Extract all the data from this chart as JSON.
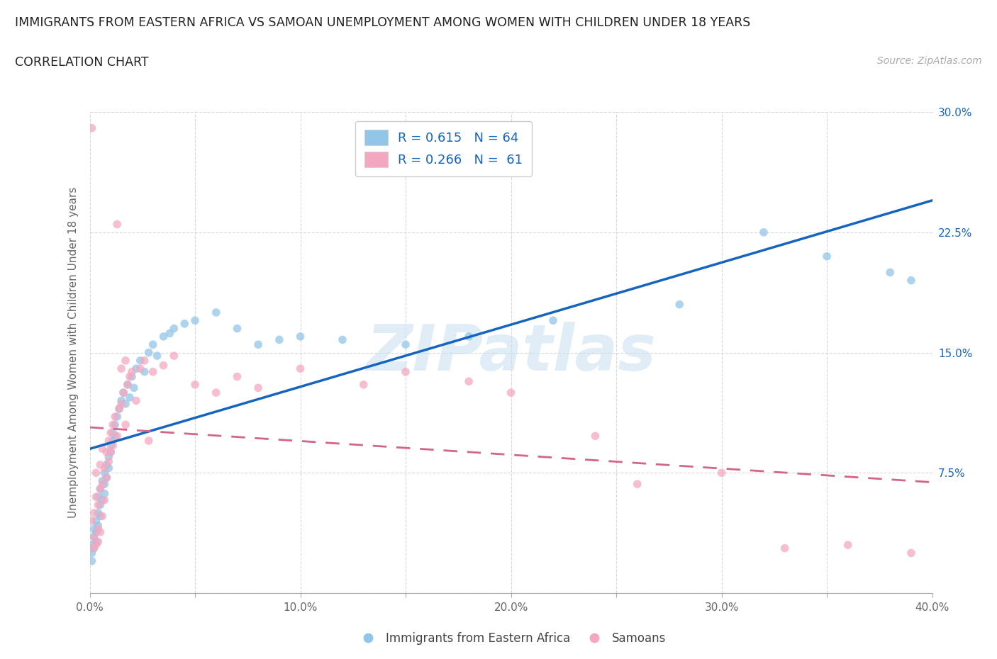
{
  "title": "IMMIGRANTS FROM EASTERN AFRICA VS SAMOAN UNEMPLOYMENT AMONG WOMEN WITH CHILDREN UNDER 18 YEARS",
  "subtitle": "CORRELATION CHART",
  "source": "Source: ZipAtlas.com",
  "ylabel": "Unemployment Among Women with Children Under 18 years",
  "xmin": 0.0,
  "xmax": 0.4,
  "ymin": 0.0,
  "ymax": 0.3,
  "x_ticks": [
    0.0,
    0.05,
    0.1,
    0.15,
    0.2,
    0.25,
    0.3,
    0.35,
    0.4
  ],
  "x_tick_labels": [
    "0.0%",
    "",
    "10.0%",
    "",
    "20.0%",
    "",
    "30.0%",
    "",
    "40.0%"
  ],
  "y_ticks": [
    0.0,
    0.075,
    0.15,
    0.225,
    0.3
  ],
  "y_tick_right_labels": [
    "",
    "7.5%",
    "15.0%",
    "22.5%",
    "30.0%"
  ],
  "blue_color": "#92c5e8",
  "pink_color": "#f4a8c0",
  "blue_line_color": "#1565c0",
  "pink_line_color": "#d4648a",
  "R_blue": 0.615,
  "N_blue": 64,
  "R_pink": 0.266,
  "N_pink": 61,
  "legend_label_blue": "Immigrants from Eastern Africa",
  "legend_label_pink": "Samoans",
  "watermark": "ZIPatlas",
  "grid_color": "#d8d8d8",
  "title_color": "#222222",
  "source_color": "#aaaaaa",
  "tick_color": "#666666",
  "right_tick_color": "#1565c0",
  "blue_scatter": [
    [
      0.001,
      0.02
    ],
    [
      0.001,
      0.03
    ],
    [
      0.001,
      0.025
    ],
    [
      0.002,
      0.035
    ],
    [
      0.002,
      0.04
    ],
    [
      0.002,
      0.028
    ],
    [
      0.003,
      0.045
    ],
    [
      0.003,
      0.038
    ],
    [
      0.003,
      0.032
    ],
    [
      0.004,
      0.05
    ],
    [
      0.004,
      0.042
    ],
    [
      0.004,
      0.06
    ],
    [
      0.005,
      0.055
    ],
    [
      0.005,
      0.048
    ],
    [
      0.005,
      0.065
    ],
    [
      0.006,
      0.058
    ],
    [
      0.006,
      0.07
    ],
    [
      0.007,
      0.062
    ],
    [
      0.007,
      0.075
    ],
    [
      0.007,
      0.068
    ],
    [
      0.008,
      0.072
    ],
    [
      0.008,
      0.08
    ],
    [
      0.009,
      0.085
    ],
    [
      0.009,
      0.078
    ],
    [
      0.01,
      0.088
    ],
    [
      0.01,
      0.092
    ],
    [
      0.011,
      0.095
    ],
    [
      0.011,
      0.1
    ],
    [
      0.012,
      0.098
    ],
    [
      0.012,
      0.105
    ],
    [
      0.013,
      0.11
    ],
    [
      0.014,
      0.115
    ],
    [
      0.015,
      0.12
    ],
    [
      0.016,
      0.125
    ],
    [
      0.017,
      0.118
    ],
    [
      0.018,
      0.13
    ],
    [
      0.019,
      0.122
    ],
    [
      0.02,
      0.135
    ],
    [
      0.021,
      0.128
    ],
    [
      0.022,
      0.14
    ],
    [
      0.024,
      0.145
    ],
    [
      0.026,
      0.138
    ],
    [
      0.028,
      0.15
    ],
    [
      0.03,
      0.155
    ],
    [
      0.032,
      0.148
    ],
    [
      0.035,
      0.16
    ],
    [
      0.038,
      0.162
    ],
    [
      0.04,
      0.165
    ],
    [
      0.045,
      0.168
    ],
    [
      0.05,
      0.17
    ],
    [
      0.06,
      0.175
    ],
    [
      0.07,
      0.165
    ],
    [
      0.08,
      0.155
    ],
    [
      0.09,
      0.158
    ],
    [
      0.1,
      0.16
    ],
    [
      0.12,
      0.158
    ],
    [
      0.15,
      0.155
    ],
    [
      0.18,
      0.16
    ],
    [
      0.22,
      0.17
    ],
    [
      0.28,
      0.18
    ],
    [
      0.32,
      0.225
    ],
    [
      0.35,
      0.21
    ],
    [
      0.38,
      0.2
    ],
    [
      0.39,
      0.195
    ]
  ],
  "pink_scatter": [
    [
      0.001,
      0.29
    ],
    [
      0.001,
      0.045
    ],
    [
      0.002,
      0.035
    ],
    [
      0.002,
      0.05
    ],
    [
      0.002,
      0.028
    ],
    [
      0.003,
      0.06
    ],
    [
      0.003,
      0.075
    ],
    [
      0.003,
      0.03
    ],
    [
      0.004,
      0.04
    ],
    [
      0.004,
      0.055
    ],
    [
      0.004,
      0.032
    ],
    [
      0.005,
      0.065
    ],
    [
      0.005,
      0.08
    ],
    [
      0.005,
      0.038
    ],
    [
      0.006,
      0.048
    ],
    [
      0.006,
      0.068
    ],
    [
      0.006,
      0.09
    ],
    [
      0.007,
      0.058
    ],
    [
      0.007,
      0.078
    ],
    [
      0.008,
      0.072
    ],
    [
      0.008,
      0.088
    ],
    [
      0.009,
      0.082
    ],
    [
      0.009,
      0.095
    ],
    [
      0.01,
      0.1
    ],
    [
      0.01,
      0.088
    ],
    [
      0.011,
      0.105
    ],
    [
      0.011,
      0.092
    ],
    [
      0.012,
      0.11
    ],
    [
      0.013,
      0.098
    ],
    [
      0.013,
      0.23
    ],
    [
      0.014,
      0.115
    ],
    [
      0.015,
      0.118
    ],
    [
      0.015,
      0.14
    ],
    [
      0.016,
      0.125
    ],
    [
      0.017,
      0.145
    ],
    [
      0.017,
      0.105
    ],
    [
      0.018,
      0.13
    ],
    [
      0.019,
      0.135
    ],
    [
      0.02,
      0.138
    ],
    [
      0.022,
      0.12
    ],
    [
      0.024,
      0.14
    ],
    [
      0.026,
      0.145
    ],
    [
      0.028,
      0.095
    ],
    [
      0.03,
      0.138
    ],
    [
      0.035,
      0.142
    ],
    [
      0.04,
      0.148
    ],
    [
      0.05,
      0.13
    ],
    [
      0.06,
      0.125
    ],
    [
      0.07,
      0.135
    ],
    [
      0.08,
      0.128
    ],
    [
      0.1,
      0.14
    ],
    [
      0.13,
      0.13
    ],
    [
      0.15,
      0.138
    ],
    [
      0.18,
      0.132
    ],
    [
      0.2,
      0.125
    ],
    [
      0.24,
      0.098
    ],
    [
      0.26,
      0.068
    ],
    [
      0.3,
      0.075
    ],
    [
      0.33,
      0.028
    ],
    [
      0.36,
      0.03
    ],
    [
      0.39,
      0.025
    ]
  ]
}
